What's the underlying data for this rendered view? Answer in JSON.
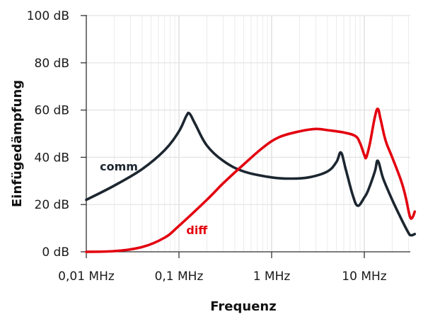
{
  "chart_data": {
    "type": "line",
    "title": "",
    "xlabel": "Frequenz",
    "ylabel": "Einfügedämpfung",
    "x_scale": "log",
    "x_unit": "MHz",
    "xlim": [
      0.01,
      35
    ],
    "ylim": [
      0,
      100
    ],
    "x_ticks": [
      {
        "value": 0.01,
        "label": "0,01 MHz"
      },
      {
        "value": 0.1,
        "label": "0,1 MHz"
      },
      {
        "value": 1,
        "label": "1 MHz"
      },
      {
        "value": 10,
        "label": "10 MHz"
      }
    ],
    "y_ticks": [
      {
        "value": 0,
        "label": "0 dB"
      },
      {
        "value": 20,
        "label": "20 dB"
      },
      {
        "value": 40,
        "label": "40 dB"
      },
      {
        "value": 60,
        "label": "60 dB"
      },
      {
        "value": 80,
        "label": "80 dB"
      },
      {
        "value": 100,
        "label": "100 dB"
      }
    ],
    "grid": true,
    "legend": "inline labels",
    "series": [
      {
        "name": "comm",
        "color": "#1c2630",
        "label_pos": {
          "x": 0.014,
          "y": 36
        },
        "points": [
          [
            0.01,
            22
          ],
          [
            0.02,
            28
          ],
          [
            0.04,
            35
          ],
          [
            0.07,
            43
          ],
          [
            0.1,
            51
          ],
          [
            0.12,
            57.5
          ],
          [
            0.13,
            58.5
          ],
          [
            0.15,
            54
          ],
          [
            0.2,
            45
          ],
          [
            0.3,
            38.5
          ],
          [
            0.5,
            34
          ],
          [
            1.0,
            31.5
          ],
          [
            1.6,
            31
          ],
          [
            2.5,
            31.5
          ],
          [
            4.0,
            34
          ],
          [
            5.0,
            38
          ],
          [
            5.6,
            42
          ],
          [
            6.3,
            35
          ],
          [
            7.5,
            24
          ],
          [
            8.5,
            19.5
          ],
          [
            10,
            23
          ],
          [
            11,
            26
          ],
          [
            13,
            34
          ],
          [
            14,
            38.5
          ],
          [
            16,
            31
          ],
          [
            20,
            22
          ],
          [
            25,
            14
          ],
          [
            30,
            8
          ],
          [
            32,
            7
          ],
          [
            35,
            7.5
          ]
        ]
      },
      {
        "name": "diff",
        "color": "#e3000f",
        "label_pos": {
          "x": 0.12,
          "y": 9
        },
        "points": [
          [
            0.01,
            0
          ],
          [
            0.02,
            0.3
          ],
          [
            0.04,
            2
          ],
          [
            0.07,
            6
          ],
          [
            0.1,
            11
          ],
          [
            0.2,
            22
          ],
          [
            0.3,
            29
          ],
          [
            0.5,
            37
          ],
          [
            0.8,
            44
          ],
          [
            1.2,
            48.5
          ],
          [
            2.0,
            51
          ],
          [
            3.0,
            52
          ],
          [
            4.0,
            51.5
          ],
          [
            6.0,
            50.5
          ],
          [
            8.0,
            49
          ],
          [
            9.0,
            46
          ],
          [
            10,
            41
          ],
          [
            10.5,
            40
          ],
          [
            11.5,
            46
          ],
          [
            13,
            57
          ],
          [
            14,
            60.5
          ],
          [
            15,
            56
          ],
          [
            17,
            47
          ],
          [
            20,
            40
          ],
          [
            25,
            30
          ],
          [
            28,
            23
          ],
          [
            31,
            15
          ],
          [
            33,
            14.5
          ],
          [
            35,
            17
          ]
        ]
      }
    ]
  }
}
